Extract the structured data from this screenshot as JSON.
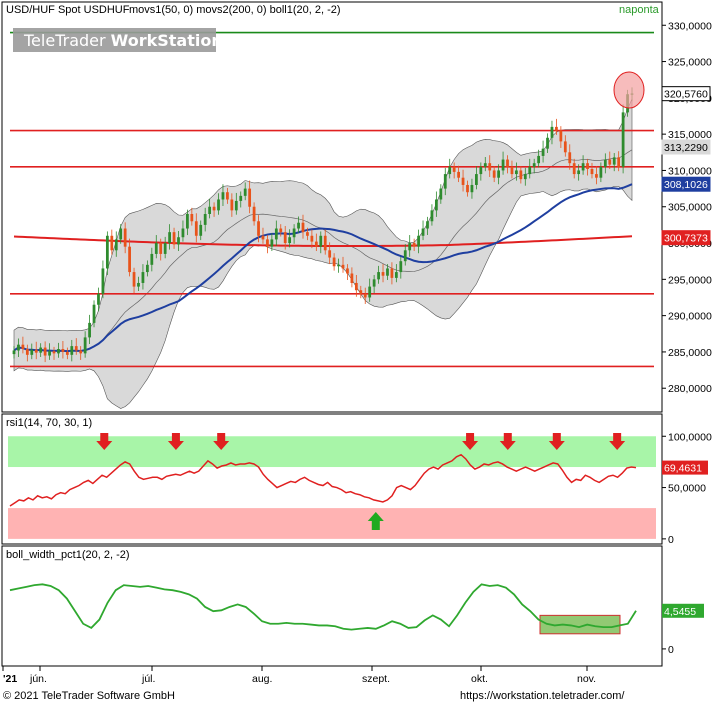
{
  "header": {
    "instrument": "USD/HUF Spot USDHUF",
    "indicators": "movs1(50, 0) movs2(200, 0) boll1(20, 2, -2)",
    "period": "naponta"
  },
  "watermark": {
    "part1": "TeleTrader ",
    "part2": "WorkStation"
  },
  "footer": {
    "copyright": "© 2021 TeleTrader Software GmbH",
    "url": "https://workstation.teletrader.com/"
  },
  "colors": {
    "up_candle": "#2e8b2e",
    "down_candle": "#e8531b",
    "band_fill": "#d9d9d9",
    "ma50": "#1f3fa0",
    "ma200": "#e02020",
    "level_line": "#e02020",
    "top_level": "#1a8a1a",
    "rsi_line": "#e02020",
    "rsi_overbought_zone": "#a8f5a8",
    "rsi_oversold_zone": "#ffb3b3",
    "bw_line": "#2fa82f"
  },
  "chart_data": [
    {
      "type": "candlestick",
      "panel": "price",
      "title": "USD/HUF Spot USDHUF",
      "ylim": [
        277,
        331
      ],
      "yticks": [
        "330,0000",
        "325,0000",
        "320,0000",
        "315,0000",
        "310,0000",
        "305,0000",
        "300,0000",
        "295,0000",
        "290,0000",
        "285,0000",
        "280,0000"
      ],
      "xticks": [
        "'21",
        "jún.",
        "júl.",
        "aug.",
        "szept.",
        "okt.",
        "nov."
      ],
      "close": [
        285.2,
        286.0,
        285.4,
        284.6,
        285.3,
        284.9,
        285.6,
        284.5,
        285.1,
        284.8,
        285.4,
        285.0,
        284.6,
        285.8,
        285.2,
        284.8,
        287.0,
        289.0,
        291.5,
        293.0,
        296.5,
        301.0,
        299.0,
        300.5,
        302.0,
        299.5,
        296.0,
        294.0,
        294.5,
        296.0,
        297.0,
        298.5,
        300.0,
        298.5,
        300.0,
        301.5,
        299.8,
        300.8,
        302.0,
        304.0,
        303.0,
        301.0,
        302.5,
        304.0,
        305.0,
        304.5,
        306.0,
        307.0,
        306.0,
        304.5,
        305.8,
        306.5,
        307.5,
        305.0,
        303.0,
        301.0,
        300.5,
        299.5,
        300.5,
        302.0,
        301.5,
        300.0,
        300.8,
        302.0,
        302.8,
        301.5,
        301.0,
        300.2,
        299.5,
        301.0,
        299.0,
        298.0,
        296.8,
        297.0,
        296.5,
        295.8,
        294.5,
        293.5,
        293.0,
        292.5,
        294.0,
        295.0,
        296.0,
        295.5,
        296.5,
        295.2,
        296.0,
        297.5,
        299.0,
        300.0,
        299.5,
        301.0,
        302.0,
        303.0,
        304.5,
        306.0,
        307.5,
        309.5,
        310.5,
        309.8,
        309.0,
        308.0,
        307.0,
        308.0,
        309.5,
        310.5,
        311.0,
        310.0,
        309.0,
        310.0,
        311.5,
        310.5,
        309.5,
        310.0,
        308.8,
        309.5,
        310.5,
        311.0,
        312.0,
        313.0,
        314.5,
        316.0,
        315.5,
        314.0,
        312.5,
        311.0,
        309.5,
        310.0,
        311.0,
        310.2,
        309.5,
        309.0,
        310.5,
        311.5,
        310.8,
        311.8,
        310.5,
        318.0,
        320.5,
        320.6
      ],
      "levels": [
        {
          "value": 329.0,
          "color": "#1a8a1a"
        },
        {
          "value": 315.5,
          "color": "#e02020"
        },
        {
          "value": 310.5,
          "color": "#e02020"
        },
        {
          "value": 293.0,
          "color": "#e02020"
        },
        {
          "value": 283.0,
          "color": "#e02020"
        }
      ],
      "series": [
        {
          "name": "movs1(50, 0)",
          "color": "#1f3fa0",
          "last": 308.1026
        },
        {
          "name": "movs2(200, 0)",
          "color": "#e02020",
          "last": 300.7373
        },
        {
          "name": "boll1(20, 2, -2)",
          "color": "#d9d9d9",
          "last": 313.229
        }
      ],
      "badges": [
        {
          "text": "320,5760",
          "value": 320.576,
          "bg": "#ffffff",
          "fg": "#000000",
          "border": "#000000"
        },
        {
          "text": "313,2290",
          "value": 313.229,
          "bg": "#d9d9d9",
          "fg": "#000000",
          "border": "#d9d9d9"
        },
        {
          "text": "308,1026",
          "value": 308.1026,
          "bg": "#1f3fa0",
          "fg": "#ffffff",
          "border": "#1f3fa0"
        },
        {
          "text": "300,7373",
          "value": 300.7373,
          "bg": "#e02020",
          "fg": "#ffffff",
          "border": "#e02020"
        }
      ]
    },
    {
      "type": "line",
      "panel": "rsi",
      "title": "rsi1(14, 70, 30, 1)",
      "ylim": [
        -5,
        110
      ],
      "yticks": [
        "100,0000",
        "50,0000",
        "0"
      ],
      "zones": [
        {
          "from": 70,
          "to": 100,
          "color": "#a8f5a8"
        },
        {
          "from": 0,
          "to": 30,
          "color": "#ffb3b3"
        }
      ],
      "values": [
        32,
        35,
        38,
        37,
        40,
        38,
        42,
        40,
        41,
        39,
        43,
        45,
        44,
        48,
        50,
        52,
        55,
        57,
        54,
        58,
        62,
        60,
        64,
        68,
        72,
        75,
        73,
        66,
        60,
        58,
        59,
        60,
        60,
        58,
        61,
        62,
        63,
        62,
        64,
        66,
        64,
        66,
        71,
        76,
        73,
        69,
        71,
        72,
        74,
        72,
        73,
        73,
        74,
        73,
        70,
        63,
        58,
        54,
        50,
        52,
        54,
        56,
        55,
        58,
        60,
        57,
        55,
        53,
        52,
        55,
        51,
        50,
        48,
        45,
        46,
        44,
        43,
        41,
        40,
        38,
        37,
        36,
        38,
        42,
        50,
        52,
        50,
        48,
        52,
        58,
        64,
        68,
        70,
        68,
        72,
        74,
        76,
        80,
        82,
        78,
        72,
        68,
        70,
        73,
        72,
        74,
        75,
        73,
        70,
        68,
        66,
        68,
        70,
        68,
        66,
        68,
        70,
        72,
        74,
        73,
        67,
        60,
        55,
        58,
        57,
        62,
        60,
        57,
        55,
        58,
        61,
        62,
        60,
        64,
        69,
        70,
        69.4631
      ],
      "last_label": "69,4631",
      "markers": [
        {
          "kind": "sell-arrow",
          "index": 25
        },
        {
          "kind": "sell-arrow",
          "index": 44
        },
        {
          "kind": "sell-arrow",
          "index": 56
        },
        {
          "kind": "buy-arrow",
          "index": 97
        },
        {
          "kind": "sell-arrow",
          "index": 122
        },
        {
          "kind": "sell-arrow",
          "index": 132
        },
        {
          "kind": "sell-arrow",
          "index": 145
        },
        {
          "kind": "sell-arrow",
          "index": 161
        }
      ]
    },
    {
      "type": "line",
      "panel": "boll_width",
      "title": "boll_width_pct1(20, 2, -2)",
      "ylim": [
        -1.8,
        10.6
      ],
      "yticks": [
        "0"
      ],
      "last_label": "4,5455",
      "values": [
        7.0,
        7.2,
        7.4,
        7.6,
        7.7,
        7.5,
        7.0,
        6.0,
        4.5,
        3.0,
        2.5,
        3.5,
        5.5,
        7.0,
        7.6,
        7.5,
        7.4,
        7.5,
        7.3,
        7.1,
        7.0,
        6.8,
        6.5,
        6.0,
        5.0,
        4.5,
        4.6,
        5.0,
        5.3,
        5.0,
        4.2,
        3.3,
        3.0,
        3.0,
        3.1,
        3.0,
        3.0,
        2.9,
        2.8,
        2.8,
        2.7,
        2.4,
        2.3,
        2.4,
        2.5,
        2.4,
        2.8,
        3.3,
        3.0,
        2.5,
        2.6,
        3.4,
        4.0,
        3.5,
        2.7,
        4.0,
        5.5,
        6.8,
        7.7,
        7.5,
        7.6,
        7.3,
        6.5,
        5.3,
        4.5,
        3.5,
        3.0,
        2.8,
        2.9,
        2.8,
        2.6,
        2.9,
        2.7,
        2.6,
        2.6,
        2.8,
        3.0,
        4.5455
      ]
    }
  ]
}
